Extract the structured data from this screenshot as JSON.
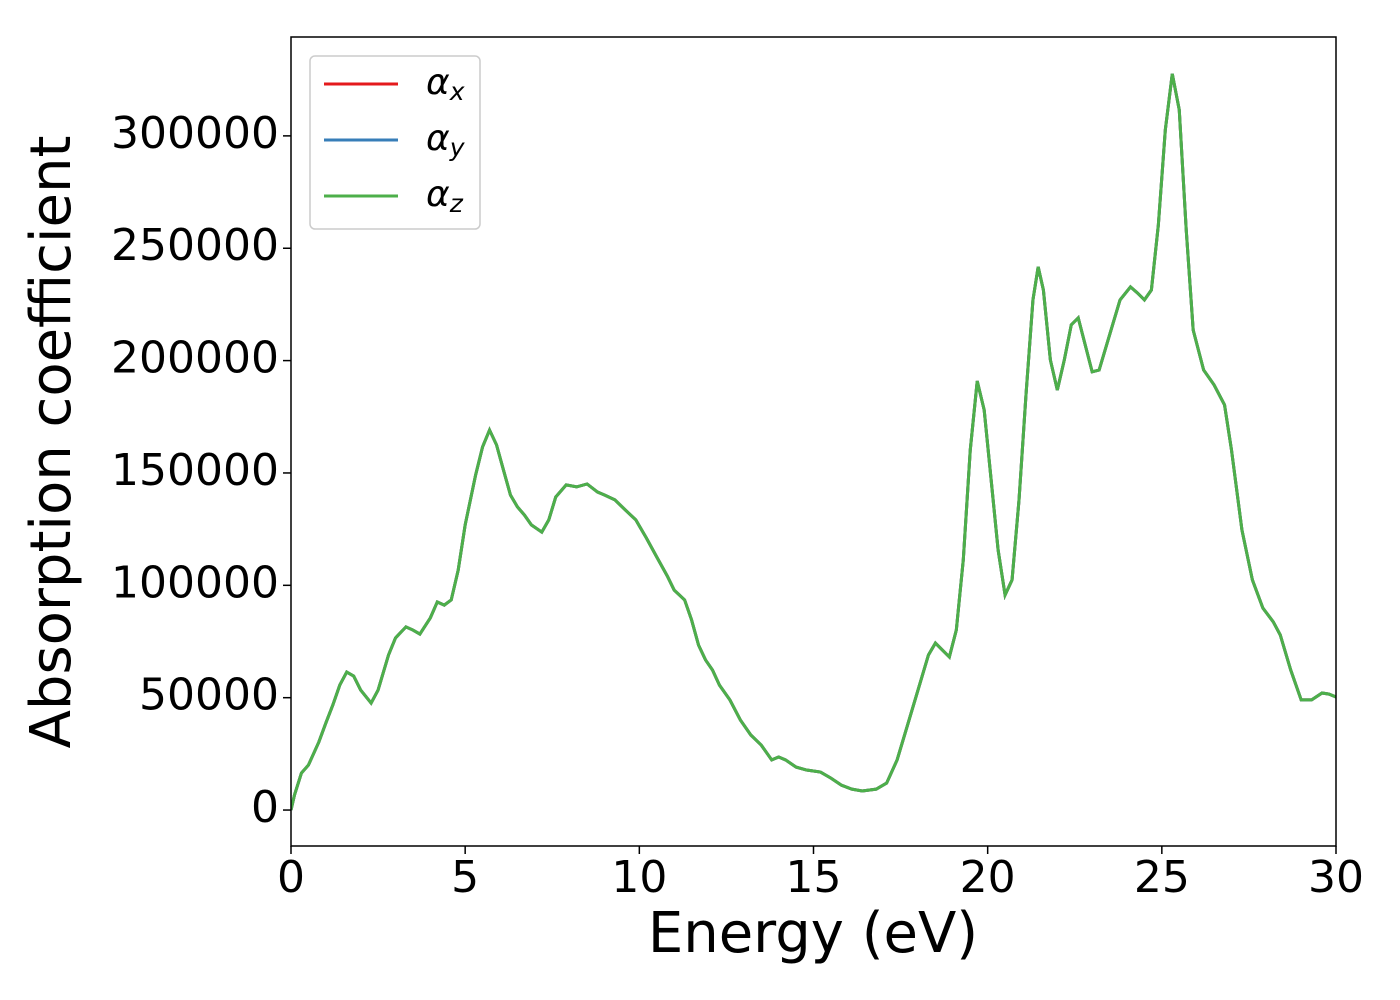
{
  "chart_data": {
    "type": "line",
    "xlabel": "Energy (eV)",
    "ylabel": "Absorption coefficient",
    "x": [
      0,
      0.1,
      0.3,
      0.5,
      0.8,
      1.0,
      1.2,
      1.4,
      1.6,
      1.8,
      2.0,
      2.3,
      2.5,
      2.8,
      3.0,
      3.3,
      3.5,
      3.7,
      4.0,
      4.2,
      4.4,
      4.6,
      4.8,
      5.0,
      5.3,
      5.5,
      5.7,
      5.9,
      6.1,
      6.3,
      6.5,
      6.7,
      6.9,
      7.2,
      7.4,
      7.6,
      7.9,
      8.2,
      8.5,
      8.8,
      9.0,
      9.3,
      9.6,
      9.9,
      10.2,
      10.5,
      10.8,
      11.0,
      11.3,
      11.5,
      11.7,
      11.9,
      12.1,
      12.3,
      12.6,
      12.9,
      13.2,
      13.5,
      13.8,
      14.0,
      14.2,
      14.5,
      14.8,
      15.2,
      15.5,
      15.8,
      16.1,
      16.4,
      16.8,
      17.1,
      17.4,
      17.7,
      18.0,
      18.3,
      18.5,
      18.7,
      18.9,
      19.1,
      19.3,
      19.5,
      19.7,
      19.9,
      20.1,
      20.3,
      20.5,
      20.7,
      20.9,
      21.1,
      21.3,
      21.45,
      21.6,
      21.8,
      22.0,
      22.2,
      22.4,
      22.6,
      22.8,
      23.0,
      23.2,
      23.5,
      23.8,
      24.1,
      24.3,
      24.5,
      24.7,
      24.9,
      25.1,
      25.3,
      25.5,
      25.7,
      25.9,
      26.2,
      26.5,
      26.8,
      27.0,
      27.3,
      27.6,
      27.9,
      28.2,
      28.4,
      28.7,
      29.0,
      29.3,
      29.6,
      29.8,
      30.0
    ],
    "series": [
      {
        "name": "αx",
        "color": "#e41a1c",
        "values": [
          0,
          6700,
          16500,
          20000,
          30300,
          38700,
          46700,
          55600,
          61400,
          59600,
          53400,
          47600,
          53400,
          69000,
          76600,
          81500,
          80100,
          78300,
          85500,
          92600,
          91200,
          93500,
          106800,
          126900,
          149100,
          161600,
          169100,
          162500,
          151300,
          140200,
          134900,
          131300,
          126900,
          123700,
          129100,
          139300,
          144700,
          143800,
          145100,
          141500,
          140200,
          138000,
          133500,
          129100,
          121100,
          112600,
          104200,
          97900,
          93500,
          84600,
          73400,
          66800,
          62300,
          55600,
          49000,
          40100,
          33400,
          28900,
          22300,
          23600,
          22300,
          19100,
          17800,
          16900,
          14200,
          11100,
          9300,
          8500,
          9300,
          12000,
          22300,
          37800,
          53400,
          69000,
          74300,
          71200,
          68100,
          80100,
          111300,
          160200,
          190900,
          178000,
          146900,
          115700,
          95700,
          102400,
          138000,
          184700,
          227000,
          241700,
          231400,
          200300,
          186900,
          200300,
          215900,
          219000,
          207000,
          195000,
          195800,
          211400,
          227000,
          232800,
          230100,
          227000,
          231400,
          260400,
          302700,
          327600,
          311600,
          258200,
          213600,
          195800,
          189200,
          180300,
          160200,
          124600,
          102400,
          89900,
          83700,
          77900,
          62300,
          49000,
          49000,
          52100,
          51600,
          50300
        ]
      },
      {
        "name": "αy",
        "color": "#377eb8",
        "values": [
          0,
          6700,
          16500,
          20000,
          30300,
          38700,
          46700,
          55600,
          61400,
          59600,
          53400,
          47600,
          53400,
          69000,
          76600,
          81500,
          80100,
          78300,
          85500,
          92600,
          91200,
          93500,
          106800,
          126900,
          149100,
          161600,
          169100,
          162500,
          151300,
          140200,
          134900,
          131300,
          126900,
          123700,
          129100,
          139300,
          144700,
          143800,
          145100,
          141500,
          140200,
          138000,
          133500,
          129100,
          121100,
          112600,
          104200,
          97900,
          93500,
          84600,
          73400,
          66800,
          62300,
          55600,
          49000,
          40100,
          33400,
          28900,
          22300,
          23600,
          22300,
          19100,
          17800,
          16900,
          14200,
          11100,
          9300,
          8500,
          9300,
          12000,
          22300,
          37800,
          53400,
          69000,
          74300,
          71200,
          68100,
          80100,
          111300,
          160200,
          190900,
          178000,
          146900,
          115700,
          95700,
          102400,
          138000,
          184700,
          227000,
          241700,
          231400,
          200300,
          186900,
          200300,
          215900,
          219000,
          207000,
          195000,
          195800,
          211400,
          227000,
          232800,
          230100,
          227000,
          231400,
          260400,
          302700,
          327600,
          311600,
          258200,
          213600,
          195800,
          189200,
          180300,
          160200,
          124600,
          102400,
          89900,
          83700,
          77900,
          62300,
          49000,
          49000,
          52100,
          51600,
          50300
        ]
      },
      {
        "name": "αz",
        "color": "#4daf4a",
        "values": [
          0,
          6700,
          16500,
          20000,
          30300,
          38700,
          46700,
          55600,
          61400,
          59600,
          53400,
          47600,
          53400,
          69000,
          76600,
          81500,
          80100,
          78300,
          85500,
          92600,
          91200,
          93500,
          106800,
          126900,
          149100,
          161600,
          169100,
          162500,
          151300,
          140200,
          134900,
          131300,
          126900,
          123700,
          129100,
          139300,
          144700,
          143800,
          145100,
          141500,
          140200,
          138000,
          133500,
          129100,
          121100,
          112600,
          104200,
          97900,
          93500,
          84600,
          73400,
          66800,
          62300,
          55600,
          49000,
          40100,
          33400,
          28900,
          22300,
          23600,
          22300,
          19100,
          17800,
          16900,
          14200,
          11100,
          9300,
          8500,
          9300,
          12000,
          22300,
          37800,
          53400,
          69000,
          74300,
          71200,
          68100,
          80100,
          111300,
          160200,
          190900,
          178000,
          146900,
          115700,
          95700,
          102400,
          138000,
          184700,
          227000,
          241700,
          231400,
          200300,
          186900,
          200300,
          215900,
          219000,
          207000,
          195000,
          195800,
          211400,
          227000,
          232800,
          230100,
          227000,
          231400,
          260400,
          302700,
          327600,
          311600,
          258200,
          213600,
          195800,
          189200,
          180300,
          160200,
          124600,
          102400,
          89900,
          83700,
          77900,
          62300,
          49000,
          49000,
          52100,
          51600,
          50300
        ]
      }
    ],
    "xlim": [
      0,
      30
    ],
    "xticks": [
      0,
      5,
      10,
      15,
      20,
      25,
      30
    ],
    "ylim": [
      -16000,
      344000
    ],
    "yticks": [
      0,
      50000,
      100000,
      150000,
      200000,
      250000,
      300000
    ],
    "grid": false,
    "legend": "upper left"
  }
}
